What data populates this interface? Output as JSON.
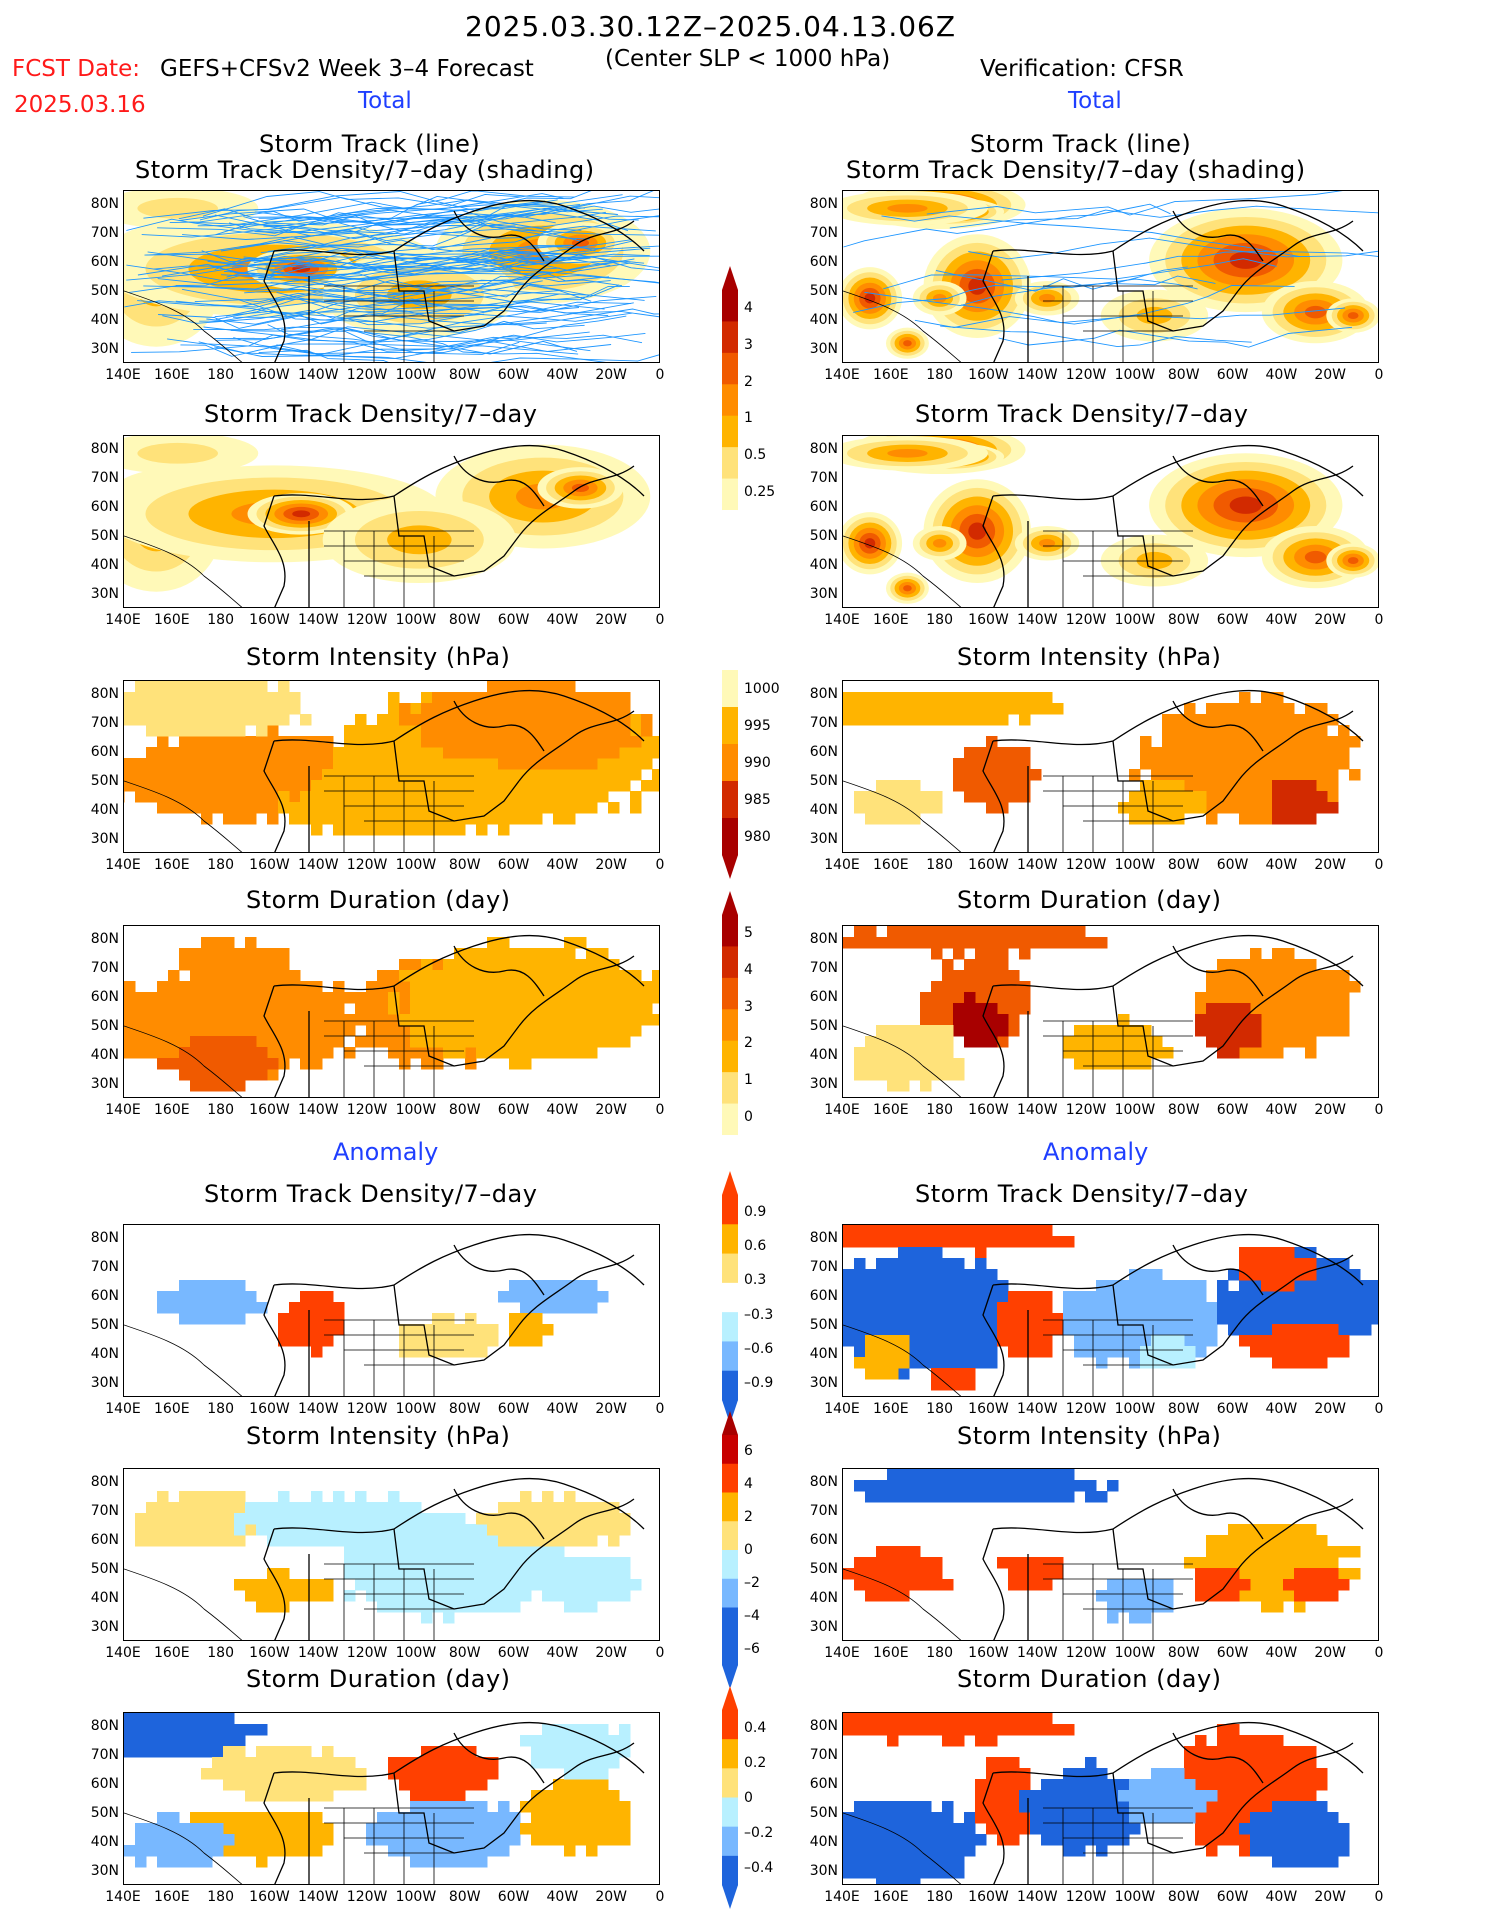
{
  "header": {
    "period": "2025.03.30.12Z–2025.04.13.06Z",
    "criterion": "(Center SLP < 1000 hPa)",
    "fcst_label": "FCST Date:",
    "fcst_date": "2025.03.16",
    "left_source": "GEFS+CFSv2 Week 3–4 Forecast",
    "right_source": "Verification: CFSR"
  },
  "sections": {
    "total": "Total",
    "anomaly": "Anomaly"
  },
  "titles": {
    "track_line": "Storm Track (line)",
    "track_shading": "Storm Track Density/7–day (shading)",
    "density": "Storm Track Density/7–day",
    "intensity": "Storm Intensity (hPa)",
    "duration": "Storm Duration (day)"
  },
  "axes": {
    "lat_labels": [
      "80N",
      "70N",
      "60N",
      "50N",
      "40N",
      "30N"
    ],
    "lon_labels": [
      "140E",
      "160E",
      "180",
      "160W",
      "140W",
      "120W",
      "100W",
      "80W",
      "60W",
      "40W",
      "20W",
      "0"
    ]
  },
  "colorbars": {
    "density_total": [
      "4",
      "3",
      "2",
      "1",
      "0.5",
      "0.25"
    ],
    "intensity_total": [
      "1000",
      "995",
      "990",
      "985",
      "980"
    ],
    "duration_total": [
      "5",
      "4",
      "3",
      "2",
      "1",
      "0"
    ],
    "density_anom": [
      "0.9",
      "0.6",
      "0.3",
      "–0.3",
      "–0.6",
      "–0.9"
    ],
    "intensity_anom": [
      "6",
      "4",
      "2",
      "0",
      "–2",
      "–4",
      "–6"
    ],
    "duration_anom": [
      "0.4",
      "0.2",
      "0",
      "–0.2",
      "–0.4"
    ]
  },
  "colors": {
    "total_scale": [
      "#fff9b8",
      "#ffe27a",
      "#ffb400",
      "#ff8c00",
      "#f05a00",
      "#d22a00",
      "#a80000"
    ],
    "anom_pos": [
      "#ffe27a",
      "#ffb400",
      "#ff4000"
    ],
    "anom_neg": [
      "#b8f0ff",
      "#78b8ff",
      "#1e64dc"
    ],
    "track_line": "#1e96ff",
    "label_red": "#ff1a1a",
    "label_blue": "#1f3fff"
  }
}
